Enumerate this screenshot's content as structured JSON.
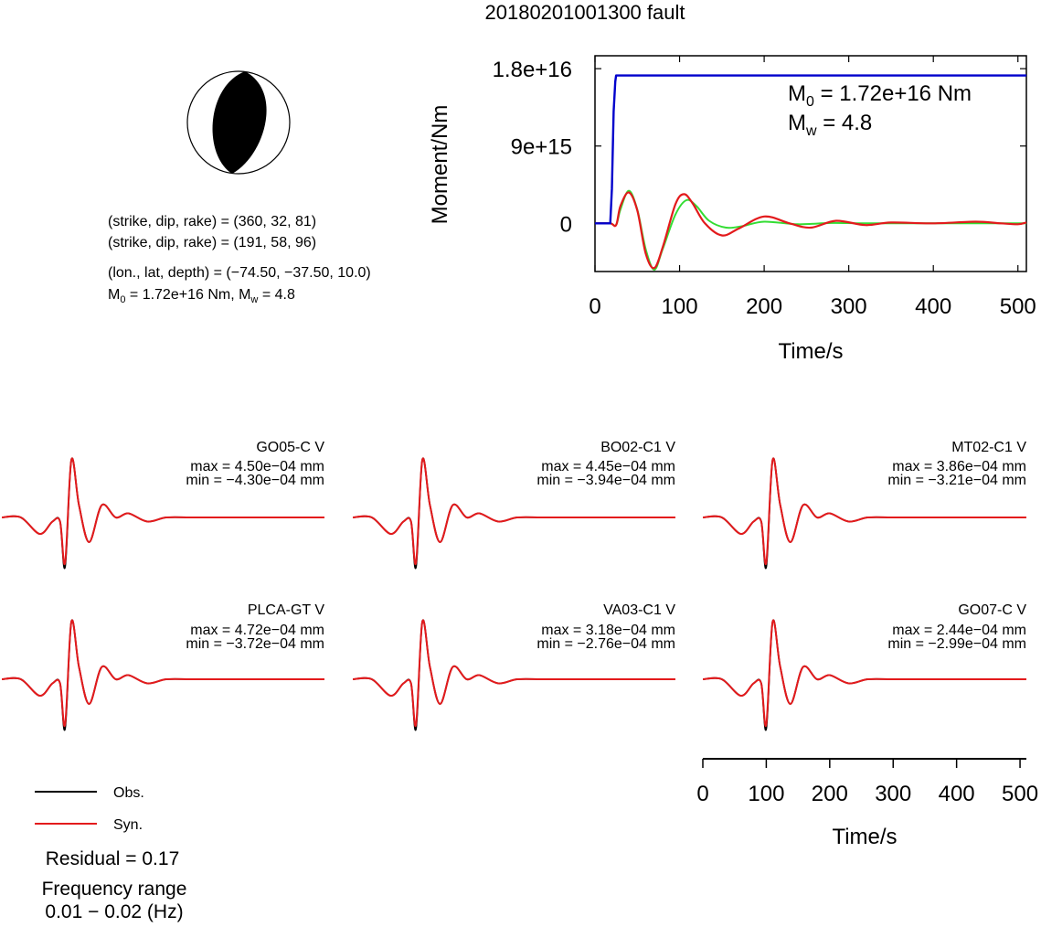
{
  "title": "20180201001300 fault",
  "beachball": {
    "plane1": "(strike, dip, rake) = (360, 32, 81)",
    "plane2": "(strike, dip, rake) = (191, 58, 96)",
    "location": "(lon., lat, depth) = (−74.50, −37.50, 10.0)",
    "m0_prefix": "M",
    "m0_sub": "0",
    "m0_text": " = 1.72e+16 Nm, M",
    "mw_sub": "w",
    "mw_text": " = 4.8"
  },
  "legend": {
    "obs_label": "Obs.",
    "syn_label": "Syn.",
    "residual": "Residual = 0.17",
    "freq_title": "Frequency range",
    "freq_range": "0.01 − 0.02 (Hz)"
  },
  "colors": {
    "observed": "#000000",
    "synthetic": "#e31a1c",
    "cumulative_moment": "#0000cc",
    "moment_rate_green": "#33dd33"
  },
  "chart_data": [
    {
      "type": "line",
      "name": "moment-function",
      "xlabel": "Time/s",
      "ylabel": "Moment/Nm",
      "xlim": [
        0,
        510
      ],
      "ylim": [
        -5600000000000000.0,
        1.95e+16
      ],
      "xticks": [
        0,
        100,
        200,
        300,
        400,
        500
      ],
      "yticks": [
        0,
        9000000000000000.0,
        1.8e+16
      ],
      "xtick_labels": [
        "0",
        "100",
        "200",
        "300",
        "400",
        "500"
      ],
      "ytick_labels": [
        "0",
        "9e+15",
        "1.8e+16"
      ],
      "annotation": {
        "m0_prefix": "M",
        "m0_sub": "0",
        "m0_value": " = 1.72e+16 Nm",
        "mw_prefix": "M",
        "mw_sub": "w",
        "mw_value": " = 4.8"
      },
      "cumulative_moment": {
        "x": [
          0,
          18,
          20,
          22,
          24,
          25,
          510
        ],
        "y": [
          0,
          0,
          4000000000000000.0,
          1.3e+16,
          1.65e+16,
          1.72e+16,
          1.72e+16
        ]
      },
      "red_curve": {
        "x": [
          0,
          18,
          25,
          30,
          40,
          50,
          60,
          70,
          80,
          95,
          105,
          115,
          130,
          150,
          170,
          200,
          230,
          255,
          285,
          320,
          350,
          400,
          450,
          480,
          500,
          510
        ],
        "y": [
          0,
          0,
          -200000000000000.0,
          2000000000000000.0,
          3600000000000000.0,
          1500000000000000.0,
          -3500000000000000.0,
          -5200000000000000.0,
          -2800000000000000.0,
          2200000000000000.0,
          3400000000000000.0,
          2400000000000000.0,
          0,
          -1400000000000000.0,
          -600000000000000.0,
          800000000000000.0,
          0,
          -500000000000000.0,
          300000000000000.0,
          -200000000000000.0,
          100000000000000.0,
          0,
          200000000000000.0,
          0,
          -100000000000000.0,
          100000000000000.0
        ]
      },
      "green_curve": {
        "x": [
          0,
          18,
          25,
          30,
          40,
          50,
          60,
          70,
          80,
          95,
          108,
          120,
          135,
          155,
          175,
          200,
          240,
          280,
          320,
          400,
          510
        ],
        "y": [
          0,
          0,
          -200000000000000.0,
          1600000000000000.0,
          3800000000000000.0,
          1600000000000000.0,
          -3000000000000000.0,
          -5400000000000000.0,
          -3000000000000000.0,
          1000000000000000.0,
          2700000000000000.0,
          2000000000000000.0,
          300000000000000.0,
          -500000000000000.0,
          -300000000000000.0,
          200000000000000.0,
          -100000000000000.0,
          50000000000000.0,
          0,
          0,
          0
        ]
      }
    },
    {
      "type": "line",
      "name": "waveform-time-axis",
      "xlabel": "Time/s",
      "xlim": [
        0,
        510
      ],
      "xticks": [
        0,
        100,
        200,
        300,
        400,
        500
      ],
      "xtick_labels": [
        "0",
        "100",
        "200",
        "300",
        "400",
        "500"
      ]
    }
  ],
  "waveforms": [
    {
      "station": "GO05-C V",
      "max": "max = 4.50e−04 mm",
      "min": "min = −4.30e−04 mm",
      "t": [
        0,
        30,
        60,
        80,
        92,
        100,
        110,
        122,
        138,
        158,
        180,
        200,
        230,
        260,
        300,
        330,
        360,
        400,
        450,
        510
      ],
      "obs": [
        0,
        0,
        -4,
        -1,
        -1,
        -12,
        14,
        3,
        -6,
        3,
        0,
        1,
        -1,
        0,
        0,
        0,
        0,
        0,
        0,
        0
      ],
      "syn": [
        0,
        0,
        -4,
        -1,
        -1,
        -11,
        14,
        3,
        -6,
        3,
        0,
        1,
        -1,
        0,
        0,
        0,
        0,
        0,
        0,
        0
      ]
    },
    {
      "station": "BO02-C1 V",
      "max": "max = 4.45e−04 mm",
      "min": "min = −3.94e−04 mm",
      "t": [
        0,
        30,
        60,
        80,
        92,
        100,
        110,
        122,
        138,
        158,
        180,
        200,
        230,
        260,
        300,
        330,
        360,
        400,
        450,
        510
      ],
      "obs": [
        0,
        0,
        -4,
        -1,
        -1,
        -12,
        14,
        3,
        -6,
        3,
        0,
        1,
        -1,
        0,
        0,
        0,
        0,
        0,
        0,
        0
      ],
      "syn": [
        0,
        0,
        -4,
        -1,
        -1,
        -11,
        14,
        3,
        -6,
        3,
        0,
        1,
        -1,
        0,
        0,
        0,
        0,
        0,
        0,
        0
      ]
    },
    {
      "station": "MT02-C1 V",
      "max": "max = 3.86e−04 mm",
      "min": "min = −3.21e−04 mm",
      "t": [
        0,
        30,
        60,
        80,
        92,
        100,
        110,
        122,
        138,
        158,
        180,
        200,
        230,
        260,
        300,
        330,
        360,
        400,
        450,
        510
      ],
      "obs": [
        0,
        0,
        -4,
        -1,
        -1,
        -12,
        14,
        3,
        -6,
        3,
        0,
        1,
        -1,
        0,
        0,
        0,
        0,
        0,
        0,
        0
      ],
      "syn": [
        0,
        0,
        -4,
        -1,
        -1,
        -11,
        14,
        3,
        -6,
        3,
        0,
        1,
        -1,
        0,
        0,
        0,
        0,
        0,
        0,
        0
      ]
    },
    {
      "station": "PLCA-GT V",
      "max": "max = 4.72e−04 mm",
      "min": "min = −3.72e−04 mm",
      "t": [
        0,
        30,
        60,
        80,
        92,
        100,
        110,
        122,
        138,
        158,
        180,
        200,
        230,
        260,
        300,
        330,
        360,
        400,
        450,
        510
      ],
      "obs": [
        0,
        0,
        -4,
        -1,
        -1,
        -12,
        14,
        3,
        -6,
        3,
        0,
        1,
        -1,
        0,
        0,
        0,
        0,
        0,
        0,
        0
      ],
      "syn": [
        0,
        0,
        -4,
        -1,
        -1,
        -11,
        14,
        3,
        -6,
        3,
        0,
        1,
        -1,
        0,
        0,
        0,
        0,
        0,
        0,
        0
      ]
    },
    {
      "station": "VA03-C1 V",
      "max": "max = 3.18e−04 mm",
      "min": "min = −2.76e−04 mm",
      "t": [
        0,
        30,
        60,
        80,
        92,
        100,
        110,
        122,
        138,
        158,
        180,
        200,
        230,
        260,
        300,
        330,
        360,
        400,
        450,
        510
      ],
      "obs": [
        0,
        0,
        -4,
        -1,
        -1,
        -12,
        14,
        3,
        -6,
        3,
        0,
        1,
        -1,
        0,
        0,
        0,
        0,
        0,
        0,
        0
      ],
      "syn": [
        0,
        0,
        -4,
        -1,
        -1,
        -11,
        14,
        3,
        -6,
        3,
        0,
        1,
        -1,
        0,
        0,
        0,
        0,
        0,
        0,
        0
      ]
    },
    {
      "station": "GO07-C V",
      "max": "max = 2.44e−04 mm",
      "min": "min = −2.99e−04 mm",
      "t": [
        0,
        30,
        60,
        80,
        92,
        100,
        110,
        122,
        138,
        158,
        180,
        200,
        230,
        260,
        300,
        330,
        360,
        400,
        450,
        510
      ],
      "obs": [
        0,
        0,
        -4,
        -1,
        -1,
        -12,
        14,
        3,
        -6,
        3,
        0,
        1,
        -1,
        0,
        0,
        0,
        0,
        0,
        0,
        0
      ],
      "syn": [
        0,
        0,
        -4,
        -1,
        -1,
        -11,
        14,
        3,
        -6,
        3,
        0,
        1,
        -1,
        0,
        0,
        0,
        0,
        0,
        0,
        0
      ]
    }
  ]
}
